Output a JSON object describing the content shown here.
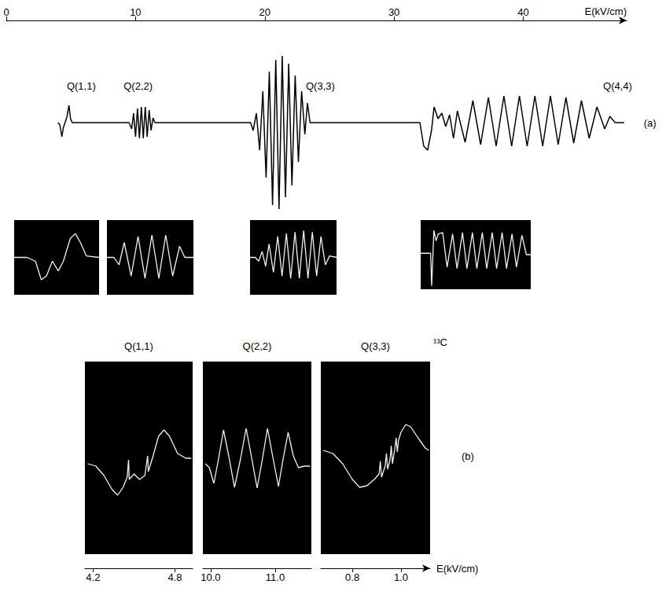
{
  "chart_data": [
    {
      "type": "line",
      "xlabel": "E(kV/cm)",
      "xlim": [
        0,
        48
      ],
      "xticks": [
        0,
        10,
        20,
        30,
        40
      ],
      "ylim": [
        -120,
        130
      ],
      "yticks": [],
      "tick_labels": "x",
      "series": [
        {
          "color": "#000000",
          "x": [
            4.0,
            4.15,
            4.3,
            4.42,
            4.55,
            4.7,
            4.85,
            4.97,
            5.1,
            9.5,
            9.7,
            9.85,
            10.0,
            10.15,
            10.3,
            10.45,
            10.6,
            10.75,
            10.9,
            11.05,
            11.2,
            11.35,
            11.5,
            18.9,
            19.1,
            19.35,
            19.6,
            19.85,
            20.1,
            20.35,
            20.6,
            20.85,
            21.1,
            21.35,
            21.6,
            21.85,
            22.1,
            22.35,
            22.6,
            22.85,
            23.1,
            23.3,
            23.5,
            32.0,
            32.3,
            32.6,
            32.9,
            33.1,
            33.4,
            33.7,
            34.0,
            34.3,
            34.6,
            34.9,
            35.5,
            36.1,
            36.7,
            37.3,
            37.9,
            38.5,
            39.1,
            39.7,
            40.3,
            40.9,
            41.5,
            42.1,
            42.7,
            43.3,
            43.9,
            44.5,
            45.1,
            45.7,
            46.3,
            46.7,
            47.1,
            47.8
          ],
          "values": [
            0,
            -3,
            -18,
            -6,
            0,
            8,
            22,
            5,
            0,
            0,
            -8,
            12,
            -18,
            18,
            -20,
            20,
            -20,
            20,
            -18,
            16,
            -10,
            6,
            0,
            0,
            -10,
            12,
            -35,
            40,
            -70,
            65,
            -105,
            80,
            -110,
            85,
            -95,
            75,
            -80,
            60,
            -50,
            40,
            -15,
            25,
            0,
            0,
            -30,
            -35,
            -10,
            20,
            5,
            12,
            -5,
            10,
            -20,
            15,
            -25,
            28,
            -28,
            32,
            -30,
            34,
            -30,
            34,
            -30,
            34,
            -30,
            34,
            -28,
            32,
            -26,
            28,
            -20,
            20,
            -8,
            8,
            0,
            0
          ]
        }
      ],
      "annotations": [
        {
          "text": "Q(1,1)",
          "x": 5.8,
          "y": 47
        },
        {
          "text": "Q(2,2)",
          "x": 10.2,
          "y": 47
        },
        {
          "text": "Q(3,3)",
          "x": 24.3,
          "y": 47
        },
        {
          "text": "Q(4,4)",
          "x": 47.3,
          "y": 47
        },
        {
          "text": "(a)",
          "x": 49.8,
          "y": 0
        }
      ]
    },
    {
      "type": "line",
      "xlim": [
        0,
        100
      ],
      "xticks": [],
      "ylim": [
        -50,
        50
      ],
      "yticks": [],
      "tick_labels": false,
      "series": [
        {
          "color": "#f2f2f2",
          "x": [
            0,
            15,
            25,
            32,
            38,
            45,
            52,
            58,
            66,
            72,
            78,
            85,
            100
          ],
          "values": [
            0,
            0,
            -5,
            -30,
            -25,
            -5,
            -18,
            -5,
            25,
            32,
            20,
            2,
            0
          ]
        }
      ]
    },
    {
      "type": "line",
      "xlim": [
        0,
        100
      ],
      "xticks": [],
      "ylim": [
        -50,
        50
      ],
      "yticks": [],
      "tick_labels": false,
      "series": [
        {
          "color": "#f2f2f2",
          "x": [
            0,
            8,
            14,
            20,
            28,
            36,
            44,
            52,
            60,
            68,
            76,
            84,
            90,
            100
          ],
          "values": [
            0,
            0,
            -10,
            20,
            -25,
            28,
            -28,
            30,
            -28,
            30,
            -25,
            15,
            0,
            0
          ]
        }
      ]
    },
    {
      "type": "line",
      "xlim": [
        0,
        100
      ],
      "xticks": [],
      "ylim": [
        -50,
        50
      ],
      "yticks": [],
      "tick_labels": false,
      "series": [
        {
          "color": "#f2f2f2",
          "x": [
            0,
            6,
            10,
            14,
            18,
            22,
            27,
            32,
            37,
            42,
            47,
            52,
            57,
            62,
            67,
            72,
            77,
            82,
            87,
            92,
            100
          ],
          "values": [
            0,
            0,
            -5,
            8,
            -12,
            18,
            -20,
            28,
            -25,
            32,
            -28,
            34,
            -28,
            36,
            -28,
            34,
            -25,
            28,
            -10,
            2,
            0
          ]
        }
      ]
    },
    {
      "type": "line",
      "xlim": [
        0,
        100
      ],
      "xticks": [],
      "ylim": [
        -50,
        50
      ],
      "yticks": [],
      "tick_labels": false,
      "series": [
        {
          "color": "#f2f2f2",
          "x": [
            0,
            9,
            10,
            12,
            14,
            16,
            20,
            24,
            29,
            33,
            38,
            42,
            47,
            51,
            56,
            60,
            65,
            69,
            74,
            78,
            83,
            87,
            92,
            96,
            100
          ],
          "values": [
            2,
            2,
            -45,
            35,
            20,
            30,
            32,
            -18,
            30,
            -20,
            32,
            -20,
            32,
            -20,
            32,
            -20,
            32,
            -20,
            32,
            -20,
            30,
            -18,
            28,
            0,
            0
          ]
        }
      ]
    },
    {
      "type": "line",
      "title": "Q(1,1)",
      "xlim": [
        4.14,
        4.93
      ],
      "xticks": [
        4.2,
        4.8
      ],
      "ylim": [
        -120,
        125
      ],
      "yticks": [],
      "tick_labels": "x",
      "series": [
        {
          "color": "#f2f2f2",
          "x": [
            4.16,
            4.22,
            4.28,
            4.34,
            4.38,
            4.42,
            4.45,
            4.46,
            4.465,
            4.5,
            4.54,
            4.58,
            4.6,
            4.605,
            4.64,
            4.68,
            4.72,
            4.76,
            4.82,
            4.88,
            4.92
          ],
          "values": [
            -5,
            -8,
            -20,
            -38,
            -45,
            -35,
            -22,
            0,
            -25,
            -18,
            -25,
            -20,
            5,
            -15,
            5,
            30,
            38,
            30,
            8,
            2,
            2
          ]
        }
      ]
    },
    {
      "type": "line",
      "title": "Q(2,2)",
      "xlim": [
        9.88,
        11.56
      ],
      "xticks": [
        {
          "value": 10,
          "label": "10.0"
        },
        {
          "value": 11,
          "label": "11.0"
        }
      ],
      "ylim": [
        -120,
        125
      ],
      "yticks": [],
      "tick_labels": "x",
      "series": [
        {
          "color": "#f2f2f2",
          "x": [
            9.92,
            9.98,
            10.05,
            10.12,
            10.2,
            10.28,
            10.37,
            10.46,
            10.55,
            10.63,
            10.72,
            10.8,
            10.88,
            10.96,
            11.05,
            11.12,
            11.2,
            11.28,
            11.36,
            11.45,
            11.54
          ],
          "values": [
            -5,
            -10,
            -30,
            0,
            38,
            5,
            -35,
            0,
            40,
            5,
            -36,
            0,
            40,
            5,
            -34,
            0,
            35,
            5,
            -10,
            -8,
            -8
          ]
        }
      ]
    },
    {
      "type": "line",
      "title": "Q(3,3)",
      "xlabel": "E(kV/cm)",
      "xlim": [
        0.67,
        1.12
      ],
      "xticks": [
        0.8,
        {
          "value": 1,
          "label": "1.0"
        }
      ],
      "ylim": [
        -120,
        125
      ],
      "yticks": [],
      "tick_labels": "x",
      "series": [
        {
          "color": "#f2f2f2",
          "x": [
            0.68,
            0.72,
            0.76,
            0.8,
            0.83,
            0.86,
            0.89,
            0.91,
            0.915,
            0.92,
            0.935,
            0.94,
            0.945,
            0.955,
            0.96,
            0.965,
            0.975,
            0.98,
            0.985,
            0.99,
            1.0,
            1.02,
            1.04,
            1.07,
            1.1,
            1.115
          ],
          "values": [
            12,
            8,
            -5,
            -25,
            -35,
            -33,
            -25,
            -18,
            -2,
            -22,
            -8,
            8,
            -12,
            0,
            18,
            -5,
            15,
            28,
            10,
            25,
            35,
            45,
            42,
            28,
            15,
            12
          ]
        }
      ],
      "annotations": [
        {
          "text": "¹³C",
          "x": 1.162,
          "y": 150
        },
        {
          "text": "(b)",
          "x": 1.275,
          "y": 5
        }
      ]
    }
  ]
}
